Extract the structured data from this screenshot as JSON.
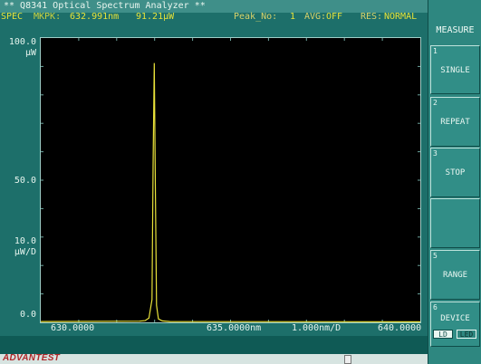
{
  "title": "** Q8341 Optical Spectrum Analyzer **",
  "status": {
    "mode": "SPEC",
    "marker_label": "MKPK:",
    "marker_wavelength": "632.991nm",
    "marker_power": "91.21μW",
    "peak_label": "Peak_No:",
    "peak_value": "1",
    "avg_label": "AVG:",
    "avg_value": "OFF",
    "res_label": "RES:",
    "res_value": "NORMAL"
  },
  "y_axis": {
    "top": "100.0",
    "top_unit": "μW",
    "mid": "50.0",
    "div": "10.0",
    "div_unit": "μW/D",
    "bottom": "0.0"
  },
  "x_axis": {
    "start": "630.0000",
    "center": "635.0000nm",
    "span_per_div": "1.000nm/D",
    "end": "640.0000"
  },
  "menu": {
    "title": "MEASURE",
    "keys": [
      {
        "num": "1",
        "label": "SINGLE"
      },
      {
        "num": "2",
        "label": "REPEAT"
      },
      {
        "num": "3",
        "label": "STOP"
      },
      {
        "num": "",
        "label": ""
      },
      {
        "num": "5",
        "label": "RANGE"
      },
      {
        "num": "6",
        "label": "DEVICE"
      }
    ],
    "device_options": [
      "LD",
      "LED"
    ]
  },
  "brand": "ADVANTEST",
  "colors": {
    "trace": "#e9e23a",
    "status_text": "#e6e23a",
    "background": "#1d6f6a",
    "plot_bg": "#000000"
  },
  "chart_data": {
    "type": "line",
    "xlabel": "",
    "ylabel": "",
    "xlim": [
      630.0,
      640.0
    ],
    "ylim": [
      0,
      100
    ],
    "x_unit": "nm",
    "y_unit": "μW",
    "series": [
      {
        "x": [
          630.0,
          632.6,
          632.75,
          632.85,
          632.93,
          632.96,
          632.991,
          633.02,
          633.05,
          633.1,
          633.2,
          633.4,
          640.0
        ],
        "y": [
          0.3,
          0.4,
          0.6,
          1.5,
          8,
          55,
          91.21,
          48,
          6,
          1.2,
          0.5,
          0.3,
          0.2
        ]
      }
    ]
  }
}
